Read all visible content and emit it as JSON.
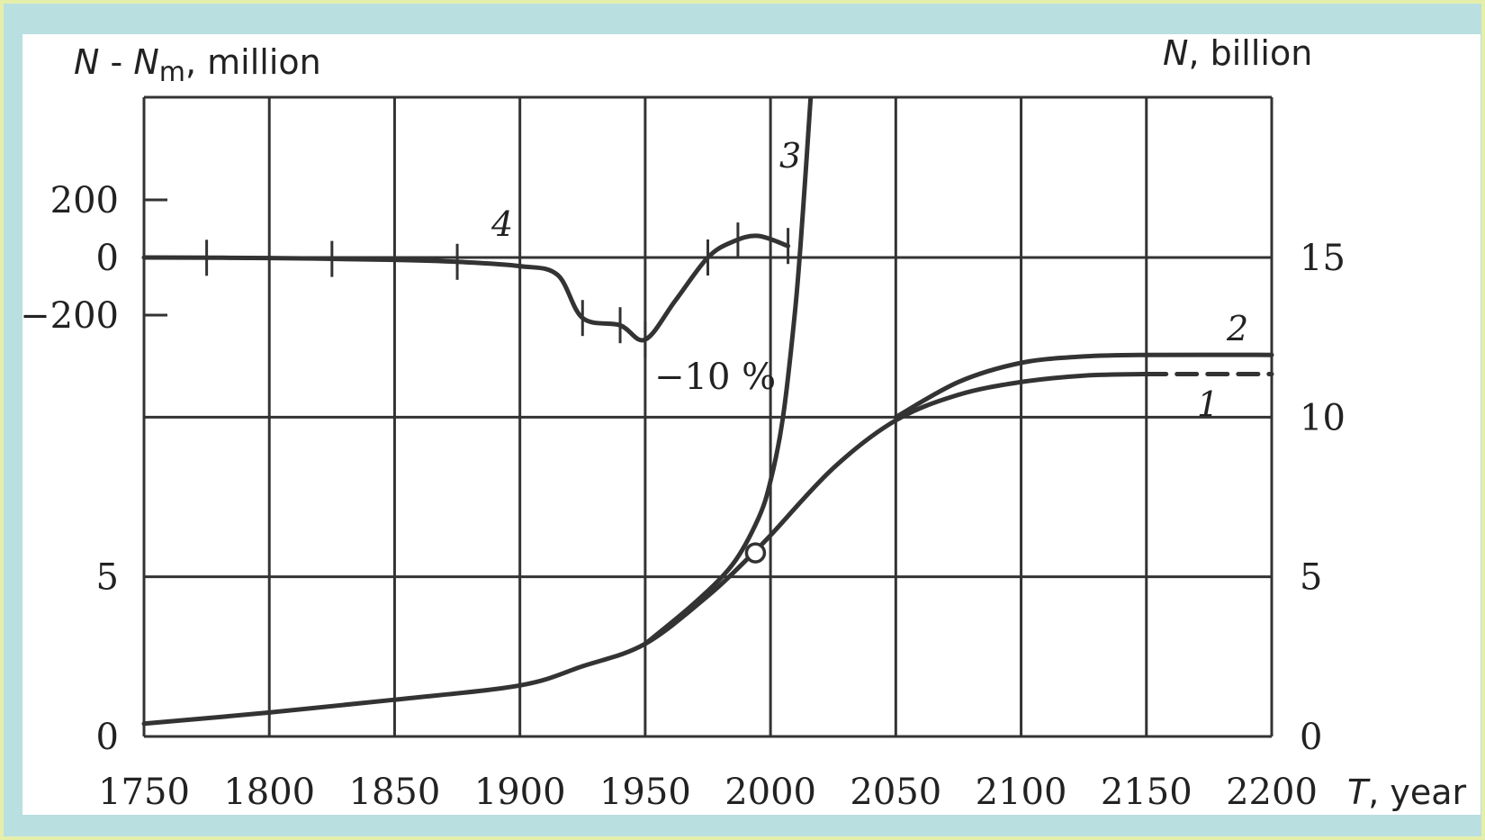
{
  "chart_data": {
    "type": "line",
    "x_axis": {
      "label_symbol": "T",
      "label_text": ", year",
      "range": [
        1750,
        2200
      ],
      "ticks": [
        "1750",
        "1800",
        "1850",
        "1900",
        "1950",
        "2000",
        "2050",
        "2100",
        "2150",
        "2200"
      ]
    },
    "y_right": {
      "label_symbol": "N",
      "label_text": ", billion",
      "range": [
        0,
        15
      ],
      "ticks": [
        "0",
        "5",
        "10",
        "15"
      ]
    },
    "y_left": {
      "label_symbol": "N",
      "label_sep": " - ",
      "label_symbol2": "N",
      "label_sub": "m",
      "label_text": ", million",
      "range": [
        -200,
        200
      ],
      "ticks": [
        "200",
        "0",
        "−200"
      ],
      "lower_ticks": [
        "5",
        "0"
      ]
    },
    "grid": true,
    "series": [
      {
        "name": "1",
        "axis": "right",
        "x": [
          1750,
          1800,
          1850,
          1900,
          1925,
          1950,
          1975,
          1990,
          2000,
          2025,
          2050,
          2075,
          2100,
          2125,
          2150,
          2200
        ],
        "y": [
          0.4,
          0.75,
          1.15,
          1.6,
          2.2,
          2.9,
          4.4,
          5.5,
          6.3,
          8.4,
          9.9,
          10.7,
          11.1,
          11.3,
          11.35,
          11.35
        ],
        "dashed_from_x": 2150
      },
      {
        "name": "2",
        "axis": "right",
        "x": [
          2050,
          2075,
          2100,
          2125,
          2150,
          2200
        ],
        "y": [
          10.0,
          11.1,
          11.7,
          11.9,
          11.95,
          11.95
        ]
      },
      {
        "name": "3",
        "axis": "right",
        "x": [
          1950,
          1970,
          1985,
          1995,
          2000,
          2005,
          2010,
          2013,
          2016
        ],
        "y": [
          2.9,
          4.2,
          5.4,
          6.8,
          8.0,
          10.0,
          13.5,
          16.5,
          20.0
        ]
      },
      {
        "name": "4",
        "axis": "left",
        "x": [
          1750,
          1800,
          1850,
          1875,
          1900,
          1915,
          1925,
          1940,
          1950,
          1962,
          1975,
          1985,
          1995,
          2007
        ],
        "y": [
          0,
          -2,
          -8,
          -15,
          -30,
          -60,
          -210,
          -235,
          -285,
          -150,
          0,
          55,
          75,
          40
        ],
        "tick_marks_x": [
          1775,
          1825,
          1875,
          1925,
          1940,
          1950,
          1975,
          1987,
          2007
        ]
      }
    ],
    "annotations": [
      {
        "text": "−10 %",
        "x": 1952,
        "y_left": -420
      }
    ],
    "marker": {
      "type": "open-circle",
      "x": 1994,
      "y": 5.75,
      "axis": "right"
    }
  },
  "colors": {
    "page_bg": "#b9dfe0",
    "panel": "#ffffff",
    "border": "#e5efaa",
    "ink": "#333333"
  }
}
